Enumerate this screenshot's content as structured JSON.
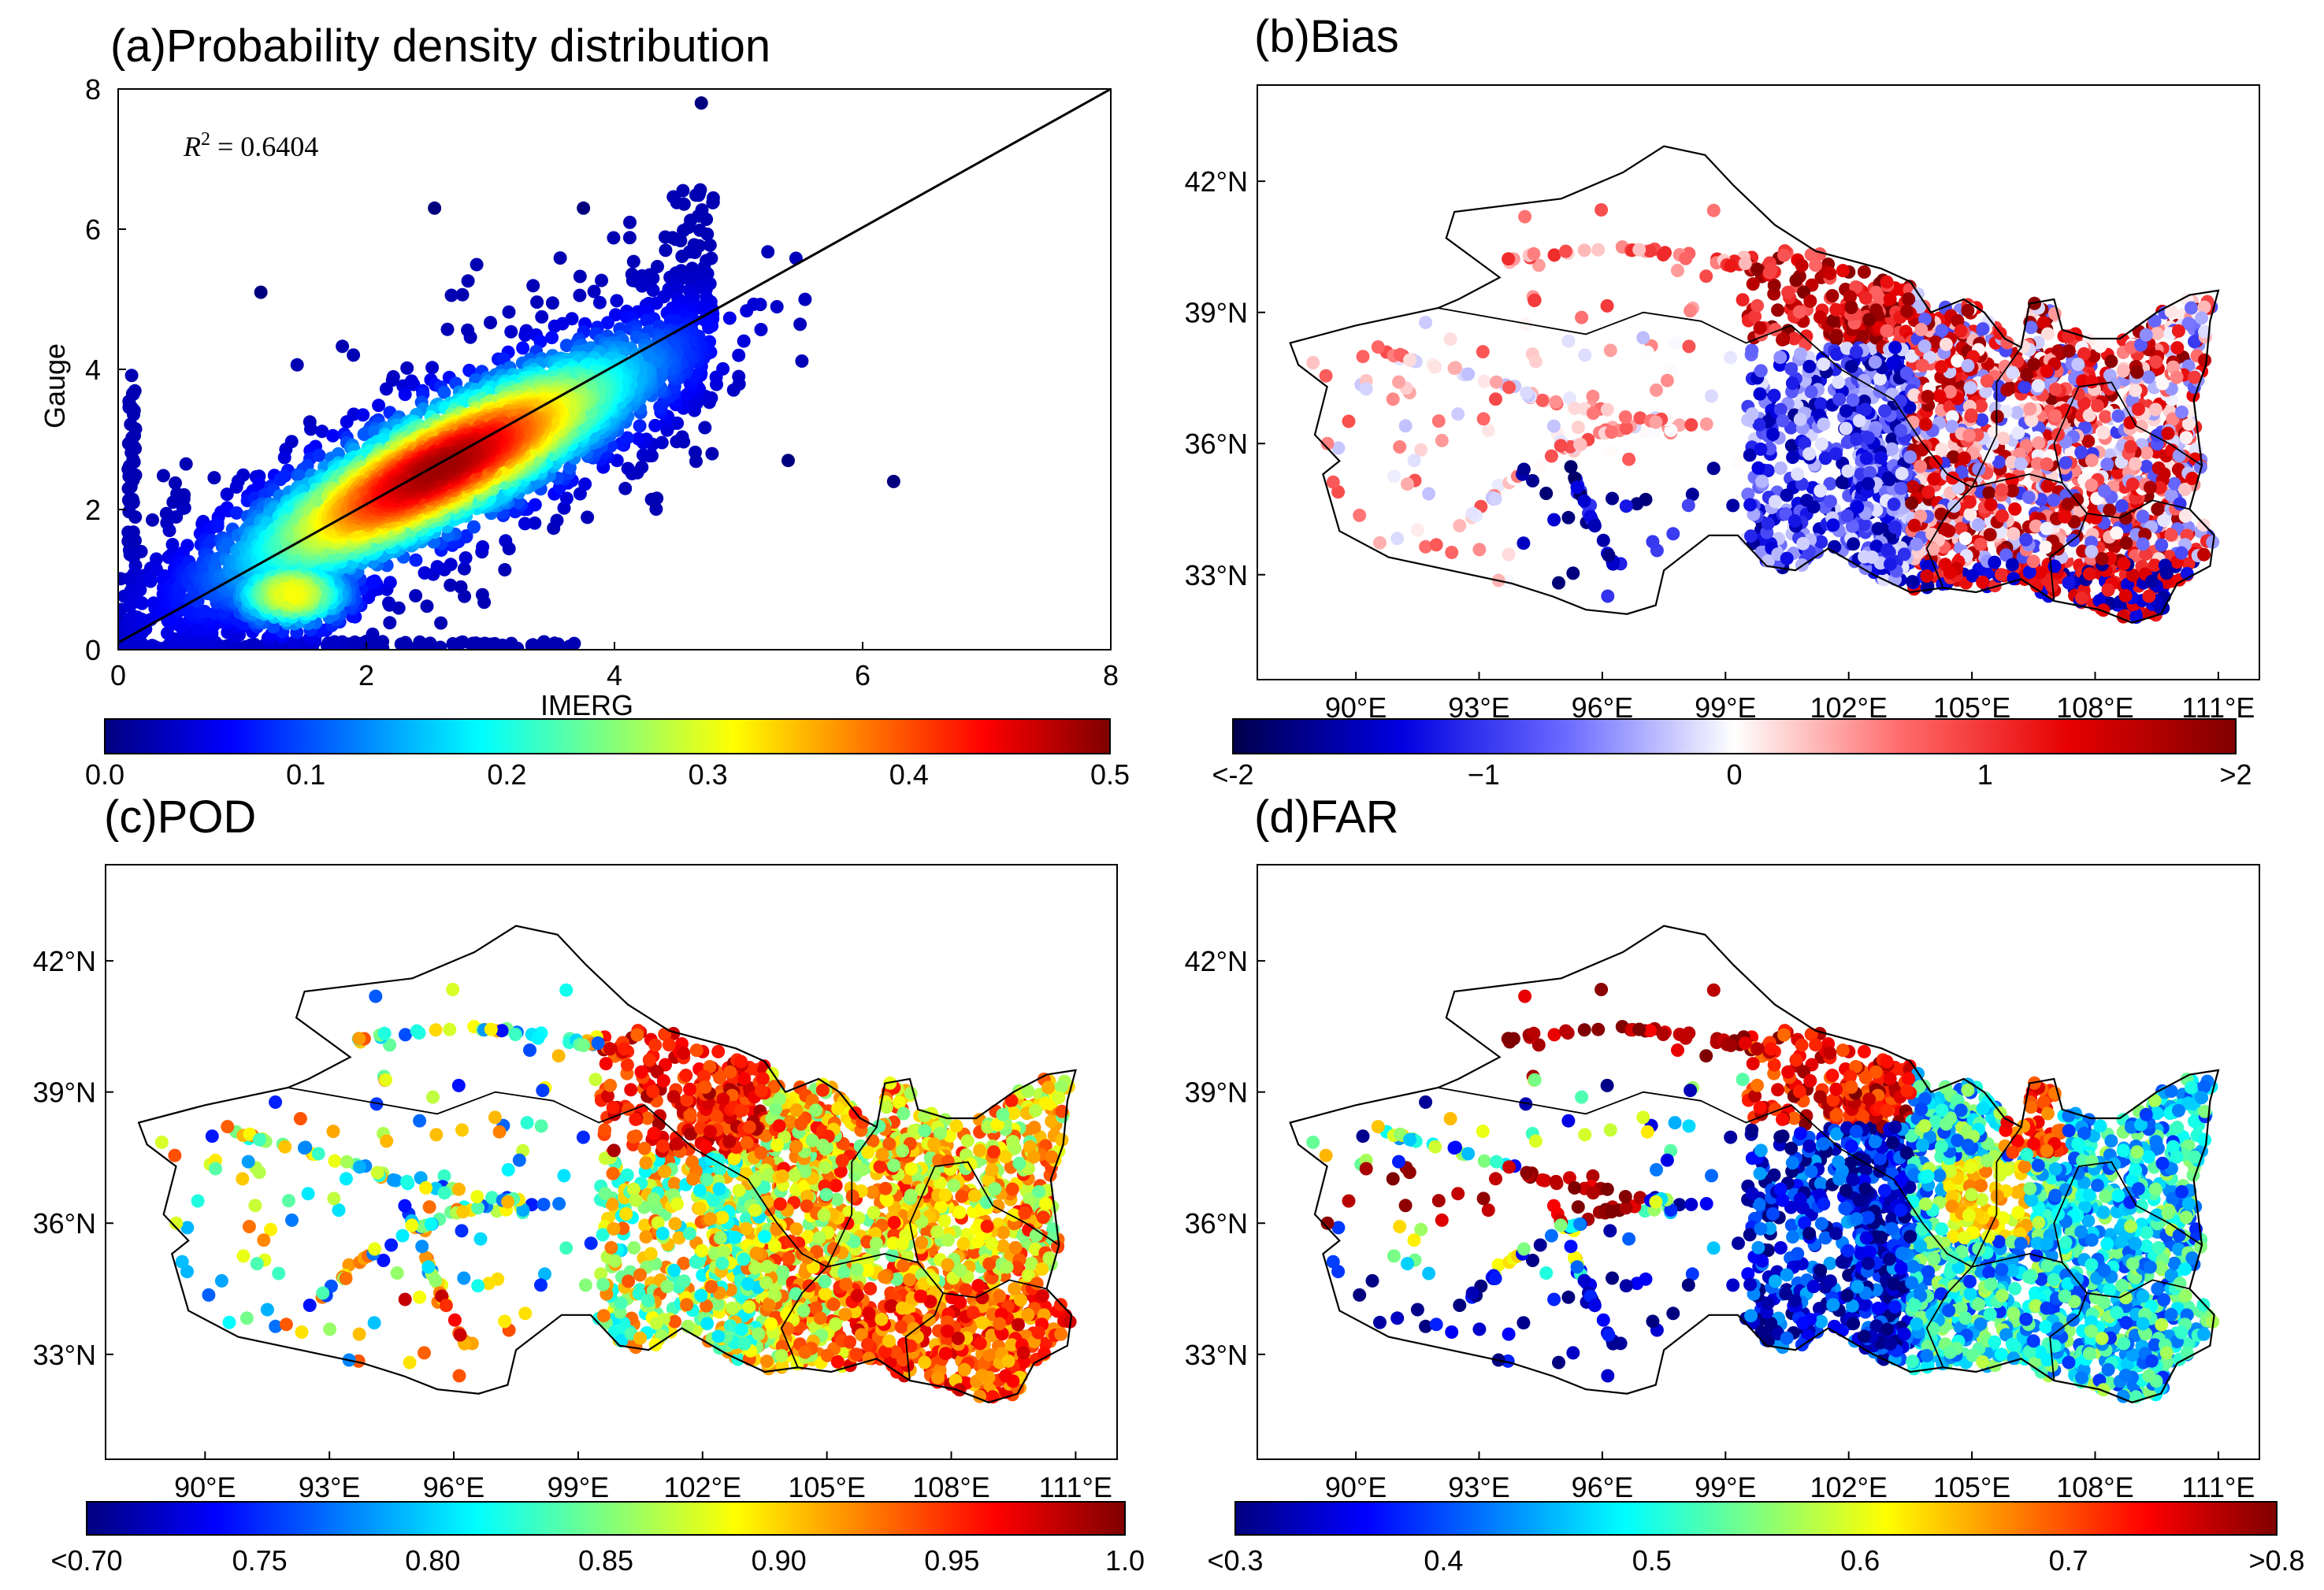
{
  "colors": {
    "jet": [
      "#00007f",
      "#0000ff",
      "#007fff",
      "#00ffff",
      "#7fff7f",
      "#ffff00",
      "#ff7f00",
      "#ff0000",
      "#7f0000"
    ],
    "bwr": [
      "#00004c",
      "#0000e0",
      "#6b6bff",
      "#ffffff",
      "#ff6b6b",
      "#e60000",
      "#800000"
    ],
    "outline": "#000000"
  },
  "chart_data": [
    {
      "id": "a",
      "type": "scatter",
      "title": "(a)Probability density distribution",
      "xlabel": "IMERG",
      "ylabel": "Gauge",
      "xlim": [
        0,
        8
      ],
      "ylim": [
        0,
        8
      ],
      "xticks": [
        "0",
        "2",
        "4",
        "6",
        "8"
      ],
      "yticks": [
        "0",
        "2",
        "4",
        "6",
        "8"
      ],
      "annotation": "R² = 0.6404",
      "annotation_parts": {
        "var": "R",
        "exp": "2",
        "rest": " = 0.6404"
      },
      "fit_line": {
        "x": [
          0,
          8
        ],
        "y": [
          0.1,
          8.0
        ]
      },
      "density_core": {
        "x": 2.6,
        "y": 2.6
      },
      "density_secondary": {
        "x": 1.4,
        "y": 0.8
      },
      "outliers": [
        {
          "x": 4.7,
          "y": 7.8
        },
        {
          "x": 1.15,
          "y": 5.1
        },
        {
          "x": 5.4,
          "y": 2.7
        },
        {
          "x": 6.25,
          "y": 2.4
        },
        {
          "x": 2.55,
          "y": 6.3
        },
        {
          "x": 3.75,
          "y": 6.3
        }
      ],
      "colorbar": {
        "min": 0.0,
        "max": 0.5,
        "ticks": [
          "0.0",
          "0.1",
          "0.2",
          "0.3",
          "0.4",
          "0.5"
        ],
        "cmap": "jet"
      }
    },
    {
      "id": "b",
      "type": "map",
      "title": "(b)Bias",
      "lat_ticks": [
        "42°N",
        "39°N",
        "36°N",
        "33°N"
      ],
      "lon_ticks": [
        "90°E",
        "93°E",
        "96°E",
        "99°E",
        "102°E",
        "105°E",
        "108°E",
        "111°E"
      ],
      "colorbar": {
        "ticks": [
          "<-2",
          "−1",
          "0",
          "1",
          ">2"
        ],
        "cmap": "bwr"
      }
    },
    {
      "id": "c",
      "type": "map",
      "title": "(c)POD",
      "lat_ticks": [
        "42°N",
        "39°N",
        "36°N",
        "33°N"
      ],
      "lon_ticks": [
        "90°E",
        "93°E",
        "96°E",
        "99°E",
        "102°E",
        "105°E",
        "108°E",
        "111°E"
      ],
      "colorbar": {
        "ticks": [
          "<0.70",
          "0.75",
          "0.80",
          "0.85",
          "0.90",
          "0.95",
          "1.0"
        ],
        "cmap": "jet"
      }
    },
    {
      "id": "d",
      "type": "map",
      "title": "(d)FAR",
      "lat_ticks": [
        "42°N",
        "39°N",
        "36°N",
        "33°N"
      ],
      "lon_ticks": [
        "90°E",
        "93°E",
        "96°E",
        "99°E",
        "102°E",
        "105°E",
        "108°E",
        "111°E"
      ],
      "colorbar": {
        "ticks": [
          "<0.3",
          "0.4",
          "0.5",
          "0.6",
          "0.7",
          ">0.8"
        ],
        "cmap": "jet"
      }
    }
  ]
}
